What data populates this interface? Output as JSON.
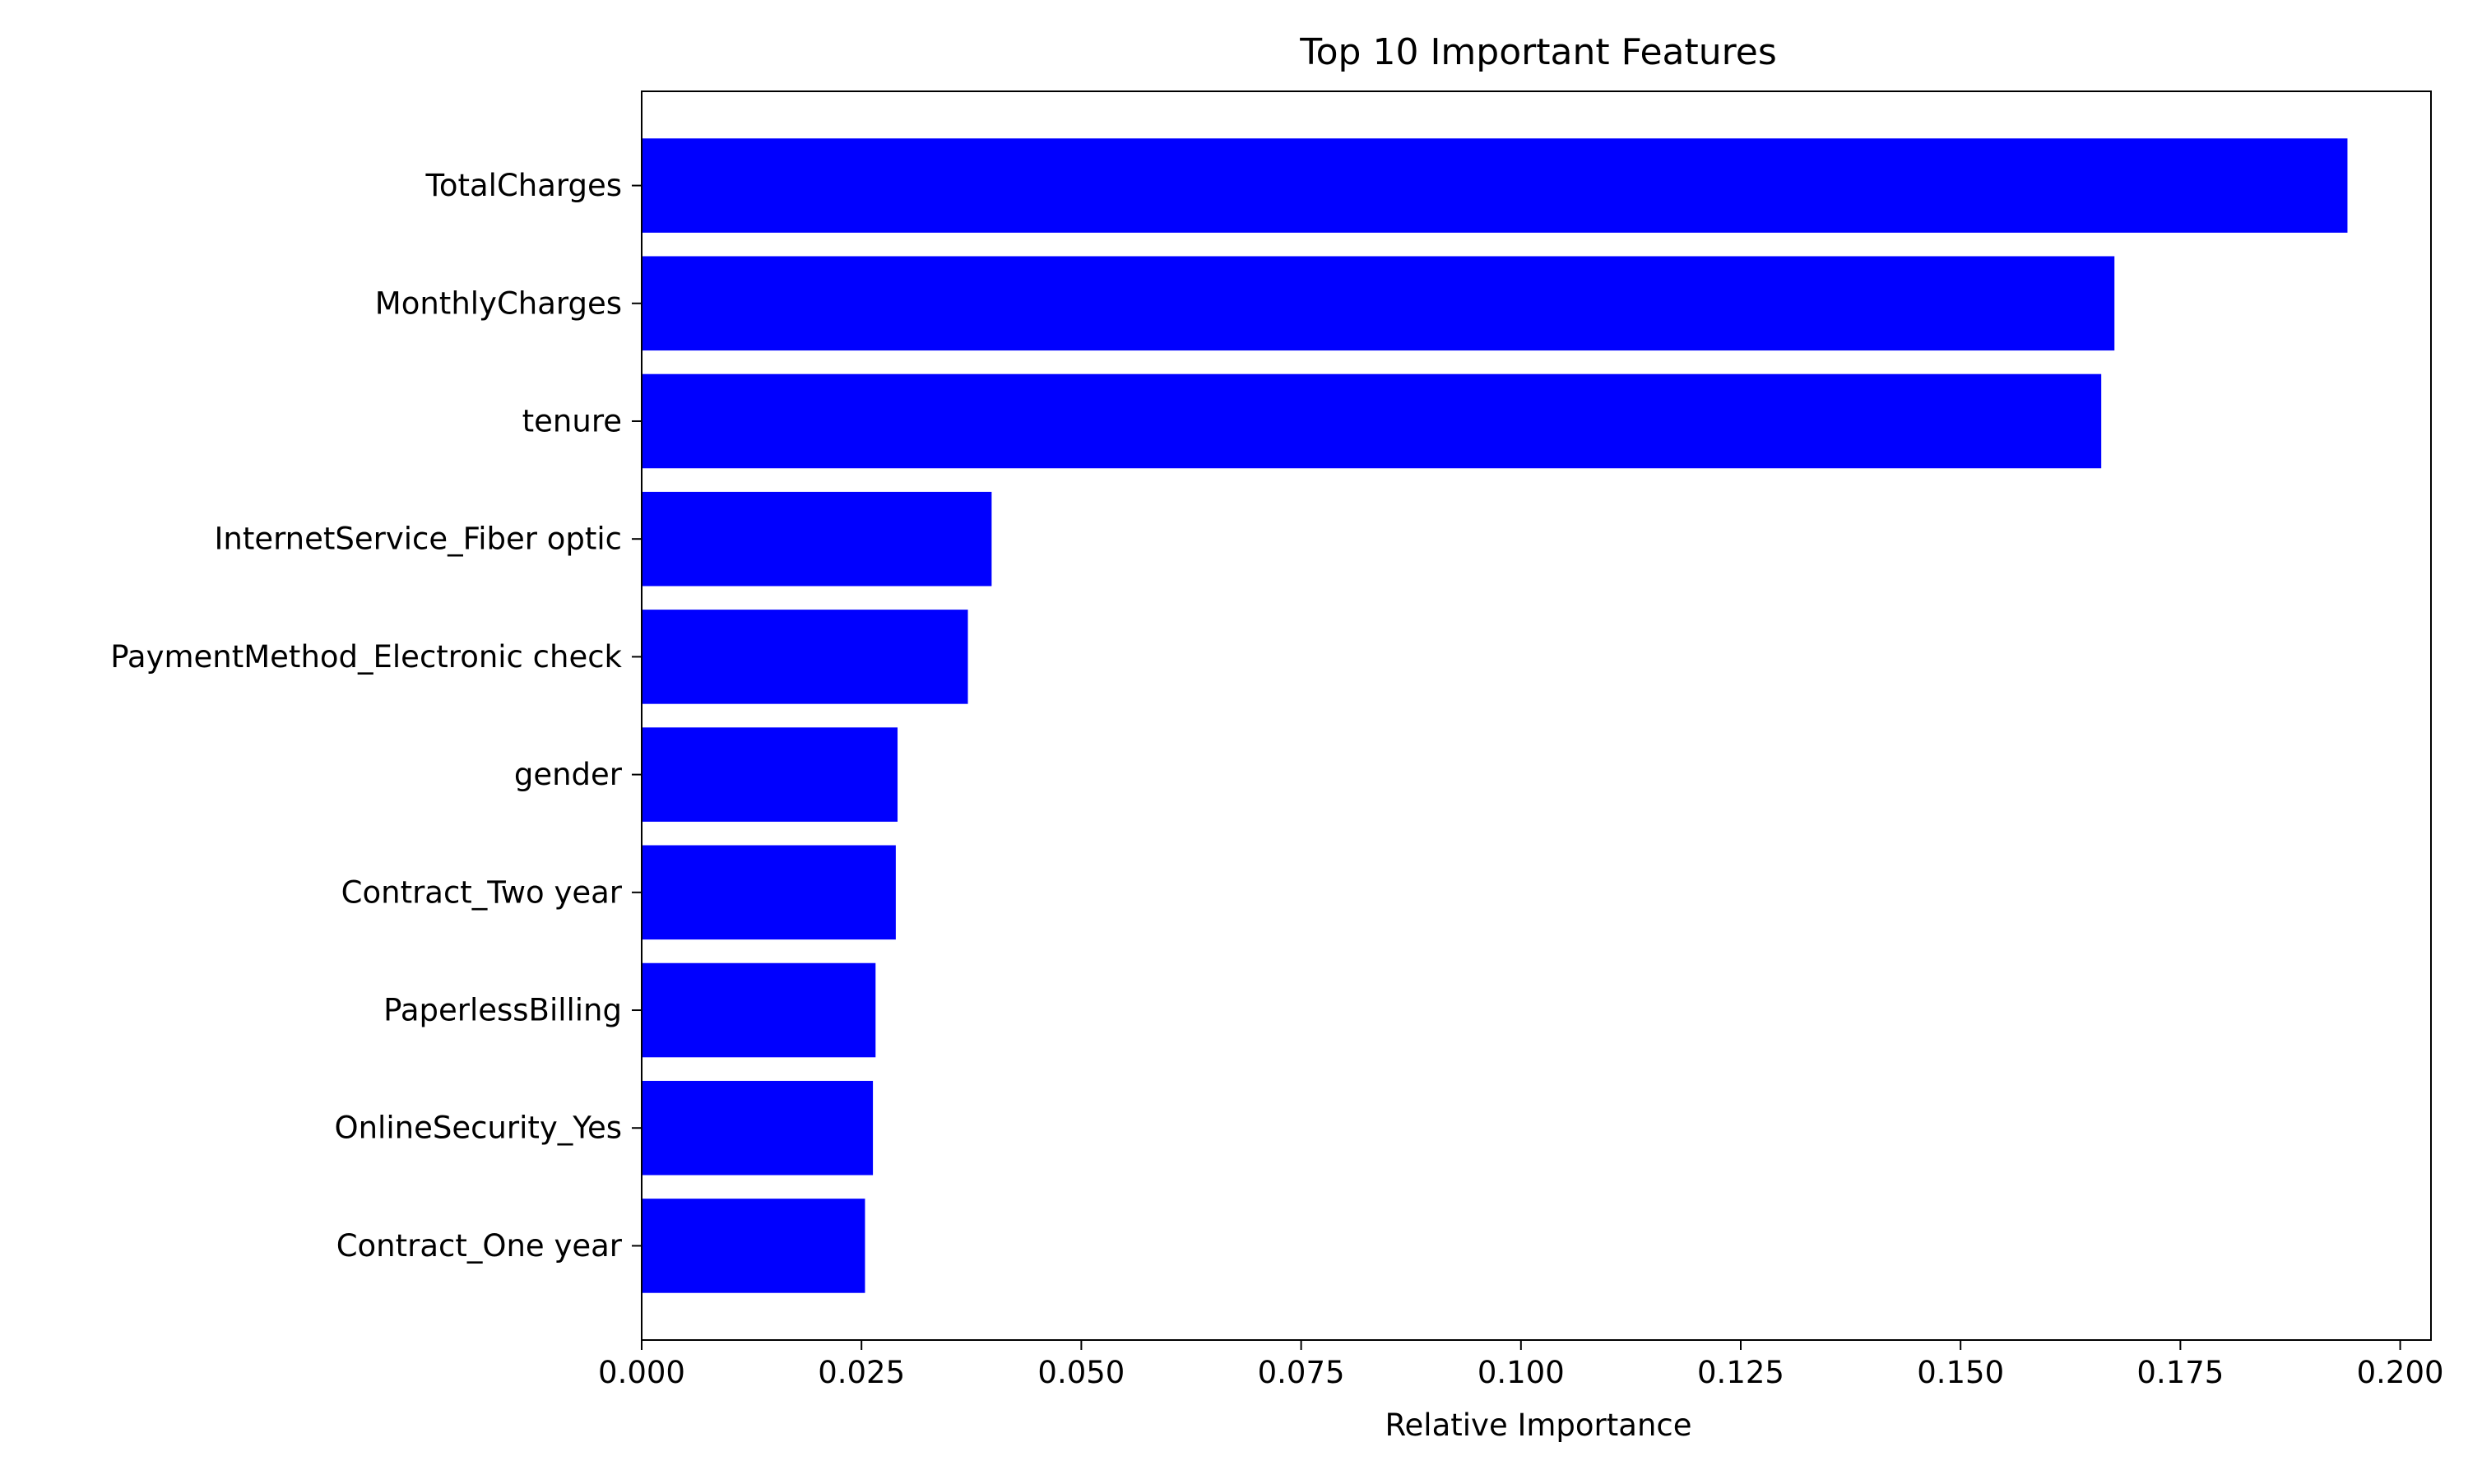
{
  "chart_data": {
    "type": "bar",
    "orientation": "horizontal",
    "title": "Top 10 Important Features",
    "xlabel": "Relative Importance",
    "ylabel": "",
    "xlim": [
      0,
      0.2035
    ],
    "xticks": [
      "0.000",
      "0.025",
      "0.050",
      "0.075",
      "0.100",
      "0.125",
      "0.150",
      "0.175",
      "0.200"
    ],
    "xtick_values": [
      0,
      0.025,
      0.05,
      0.075,
      0.1,
      0.125,
      0.15,
      0.175,
      0.2
    ],
    "categories": [
      "TotalCharges",
      "MonthlyCharges",
      "tenure",
      "InternetService_Fiber optic",
      "PaymentMethod_Electronic check",
      "gender",
      "Contract_Two year",
      "PaperlessBilling",
      "OnlineSecurity_Yes",
      "Contract_One year"
    ],
    "values": [
      0.194,
      0.1675,
      0.166,
      0.0398,
      0.0371,
      0.0291,
      0.0289,
      0.0266,
      0.0263,
      0.0254
    ],
    "bar_color": "#0000ff",
    "grid": false,
    "legend": "none"
  }
}
